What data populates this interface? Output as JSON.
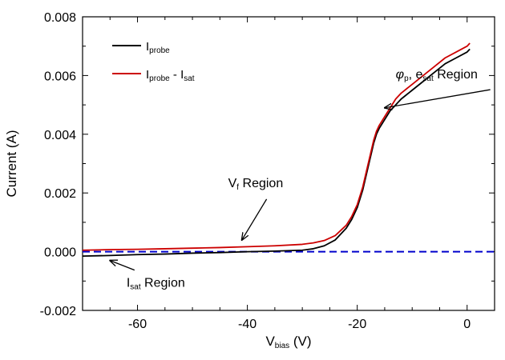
{
  "chart_data": {
    "type": "line",
    "xlabel": {
      "main": "V",
      "sub": "bias",
      "unit": " (V)"
    },
    "ylabel": "Current (A)",
    "xlim": [
      -70,
      5
    ],
    "ylim": [
      -0.002,
      0.008
    ],
    "xticks": [
      -60,
      -40,
      -20,
      0
    ],
    "xtick_labels": [
      "-60",
      "-40",
      "-20",
      "0"
    ],
    "yticks": [
      -0.002,
      0.0,
      0.002,
      0.004,
      0.006,
      0.008
    ],
    "ytick_labels": [
      "-0.002",
      "0.000",
      "0.002",
      "0.004",
      "0.006",
      "0.008"
    ],
    "grid": false,
    "legend_position": "top-left",
    "series": [
      {
        "name": "I_probe",
        "legend": {
          "main": "I",
          "sub": "probe",
          "rest": "",
          "sub2": ""
        },
        "color": "#000000",
        "x": [
          -70,
          -65,
          -60,
          -55,
          -50,
          -45,
          -40,
          -35,
          -30,
          -28,
          -26,
          -24,
          -22,
          -21,
          -20,
          -19,
          -18,
          -17.5,
          -17,
          -16.5,
          -16,
          -15,
          -14,
          -13,
          -12,
          -10,
          -8,
          -6,
          -4,
          -2,
          0,
          0.5
        ],
        "y": [
          -0.00015,
          -0.00013,
          -0.0001,
          -8e-05,
          -5e-05,
          -3e-05,
          0.0,
          2e-05,
          5e-05,
          0.0001,
          0.0002,
          0.0004,
          0.0008,
          0.0011,
          0.0015,
          0.0021,
          0.0029,
          0.0033,
          0.0037,
          0.004,
          0.0042,
          0.0045,
          0.0048,
          0.005,
          0.0052,
          0.0055,
          0.0058,
          0.0061,
          0.0064,
          0.0066,
          0.0068,
          0.0069
        ]
      },
      {
        "name": "I_probe - I_sat",
        "legend": {
          "main": "I",
          "sub": "probe",
          "rest": " - I",
          "sub2": "sat"
        },
        "color": "#cc0000",
        "x": [
          -70,
          -65,
          -60,
          -55,
          -50,
          -45,
          -40,
          -35,
          -30,
          -28,
          -26,
          -24,
          -22,
          -21,
          -20,
          -19,
          -18,
          -17.5,
          -17,
          -16.5,
          -16,
          -15,
          -14,
          -13,
          -12,
          -10,
          -8,
          -6,
          -4,
          -2,
          0,
          0.5
        ],
        "y": [
          5e-05,
          7e-05,
          8e-05,
          0.0001,
          0.00012,
          0.00014,
          0.00017,
          0.0002,
          0.00025,
          0.0003,
          0.00038,
          0.00055,
          0.0009,
          0.0012,
          0.0016,
          0.0022,
          0.003,
          0.0034,
          0.0038,
          0.0041,
          0.0043,
          0.0046,
          0.0049,
          0.0052,
          0.0054,
          0.0057,
          0.006,
          0.0063,
          0.0066,
          0.0068,
          0.007,
          0.0071
        ]
      }
    ],
    "reference_line": {
      "y": 0.0,
      "color": "#0000cc",
      "style": "dashed"
    },
    "annotations": [
      {
        "parts": [
          {
            "text": "V"
          },
          {
            "text": "f",
            "sub": true
          },
          {
            "text": " Region"
          }
        ],
        "text_at": [
          -43.5,
          0.0022
        ],
        "arrow_to": [
          -41,
          0.0004
        ]
      },
      {
        "parts": [
          {
            "text": "I"
          },
          {
            "text": "sat",
            "sub": true
          },
          {
            "text": " Region"
          }
        ],
        "text_at": [
          -62,
          -0.0012
        ],
        "arrow_to": [
          -65,
          -0.0003
        ]
      },
      {
        "parts": [
          {
            "text": "φ",
            "italic": true
          },
          {
            "text": "p",
            "sub": true
          },
          {
            "text": ", e"
          },
          {
            "text": "sat",
            "sub": true
          },
          {
            "text": " Region"
          }
        ],
        "text_at": [
          -13,
          0.0059
        ],
        "arrow_to": [
          -15,
          0.0049
        ]
      }
    ]
  }
}
